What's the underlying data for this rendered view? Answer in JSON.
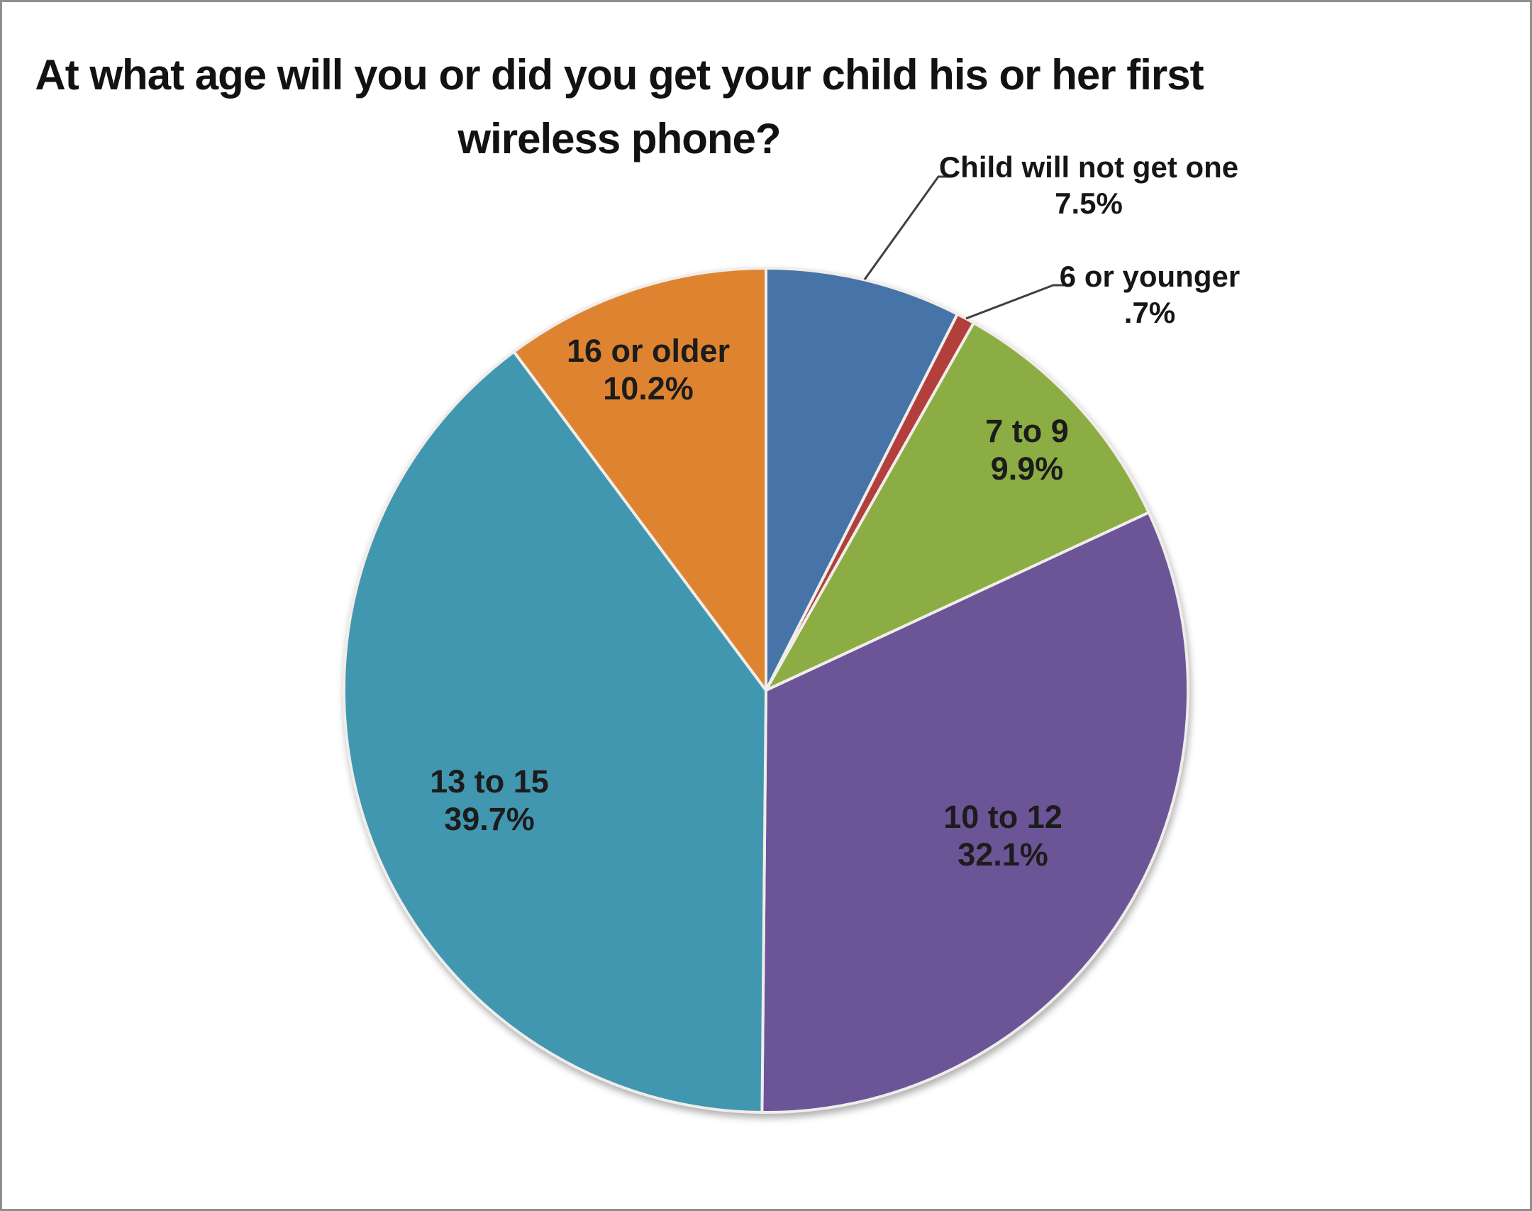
{
  "chart_data": {
    "type": "pie",
    "title": "At what age will you or did you get your child his or her first wireless phone?",
    "legend": "none",
    "start_angle_deg": 0,
    "direction": "clockwise",
    "label_format": "category name + percentage",
    "slices": [
      {
        "label": "Child will not get one",
        "value": 7.5,
        "pct_label": "7.5%",
        "color": "#4674a8",
        "label_style": "callout"
      },
      {
        "label": "6 or younger",
        "value": 0.7,
        "pct_label": ".7%",
        "color": "#b23f3c",
        "label_style": "callout"
      },
      {
        "label": "7 to 9",
        "value": 9.9,
        "pct_label": "9.9%",
        "color": "#8bad43",
        "label_style": "inside"
      },
      {
        "label": "10 to 12",
        "value": 32.1,
        "pct_label": "32.1%",
        "color": "#6b5596",
        "label_style": "inside"
      },
      {
        "label": "13 to 15",
        "value": 39.7,
        "pct_label": "39.7%",
        "color": "#4297b0",
        "label_style": "inside"
      },
      {
        "label": "16 or older",
        "value": 10.2,
        "pct_label": "10.2%",
        "color": "#de8431",
        "label_style": "inside"
      }
    ],
    "colors": {
      "background": "#ffffff",
      "frame_border": "#8f8f8f",
      "slice_gap": "#f0edea",
      "leader_line": "#404040",
      "text": "#1c1c1c"
    }
  }
}
